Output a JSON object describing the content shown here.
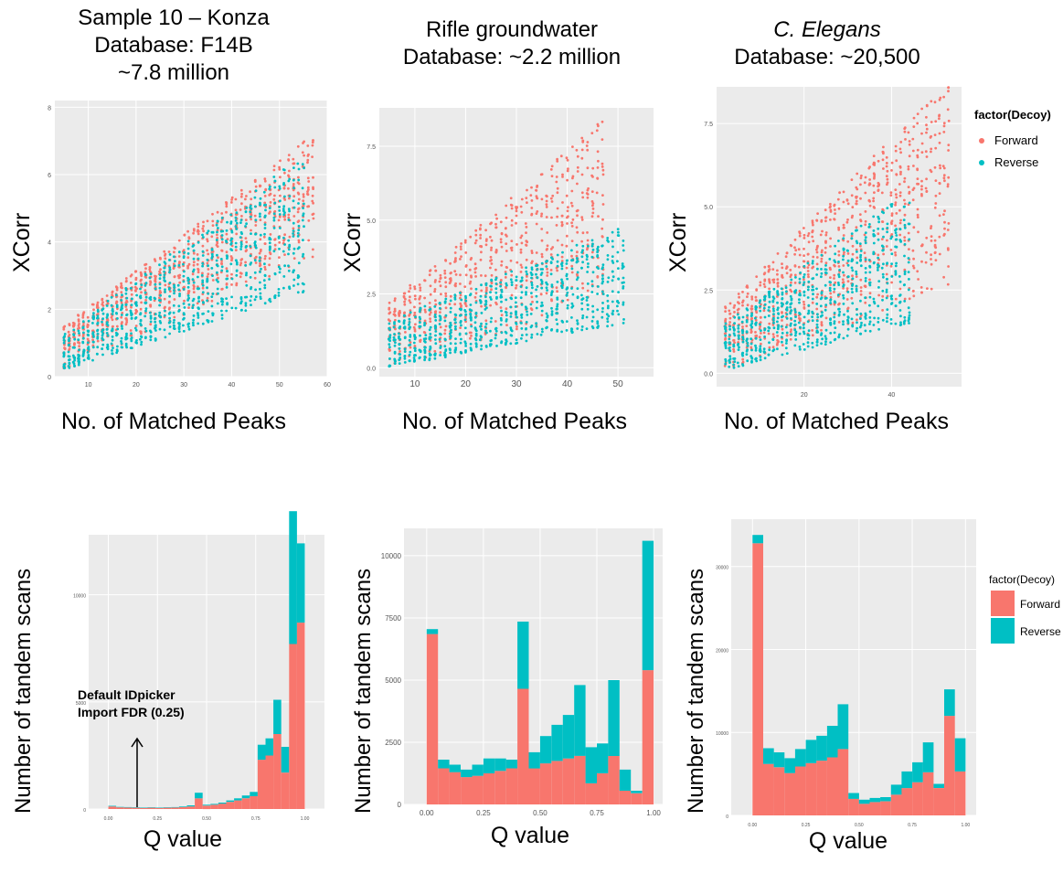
{
  "figure": {
    "legend_colors": {
      "Forward": "#F8766D",
      "Reverse": "#00BFC4"
    },
    "panel_background": "#EBEBEB",
    "grid_color": "#FFFFFF"
  },
  "chart_data": [
    {
      "type": "scatter",
      "title": [
        "Sample 10 – Konza",
        "Database: F14B",
        "~7.8 million"
      ],
      "xlabel": "No. of Matched Peaks",
      "ylabel": "XCorr",
      "xlim": [
        3,
        60
      ],
      "ylim": [
        0,
        8.2
      ],
      "xticks": [
        10,
        20,
        30,
        40,
        50,
        60
      ],
      "yticks": [
        0,
        2,
        4,
        6,
        8
      ],
      "series": [
        {
          "name": "Forward",
          "x_range": [
            5,
            57
          ],
          "y_min": [
            0.2,
            3.5
          ],
          "y_max": [
            1.5,
            7.2
          ]
        },
        {
          "name": "Reverse",
          "x_range": [
            5,
            55
          ],
          "y_min": [
            0.2,
            2.5
          ],
          "y_max": [
            1.3,
            6.6
          ]
        }
      ]
    },
    {
      "type": "scatter",
      "title": [
        "Rifle groundwater",
        "Database: ~2.2 million"
      ],
      "xlabel": "No. of Matched Peaks",
      "ylabel": "XCorr",
      "xlim": [
        3,
        57
      ],
      "ylim": [
        -0.3,
        8.8
      ],
      "xticks": [
        10,
        20,
        30,
        40,
        50
      ],
      "yticks": [
        0.0,
        2.5,
        5.0,
        7.5
      ],
      "series": [
        {
          "name": "Forward",
          "x_range": [
            5,
            47
          ],
          "y_min": [
            0.0,
            2.0
          ],
          "y_max": [
            2.2,
            8.4
          ]
        },
        {
          "name": "Reverse",
          "x_range": [
            5,
            51
          ],
          "y_min": [
            0.0,
            1.5
          ],
          "y_max": [
            1.6,
            4.8
          ]
        }
      ]
    },
    {
      "type": "scatter",
      "title": [
        "C. Elegans",
        "Database: ~20,500"
      ],
      "title_italic_line": 0,
      "xlabel": "No. of Matched Peaks",
      "ylabel": "XCorr",
      "xlim": [
        0,
        56
      ],
      "ylim": [
        -0.4,
        8.6
      ],
      "xticks": [
        20,
        40
      ],
      "yticks": [
        0.0,
        2.5,
        5.0,
        7.5
      ],
      "legend": {
        "title": "factor(Decoy)",
        "items": [
          "Forward",
          "Reverse"
        ],
        "position": "right"
      },
      "series": [
        {
          "name": "Forward",
          "x_range": [
            2,
            53
          ],
          "y_min": [
            0.1,
            2.5
          ],
          "y_max": [
            2.0,
            8.8
          ]
        },
        {
          "name": "Reverse",
          "x_range": [
            2,
            44
          ],
          "y_min": [
            0.1,
            1.5
          ],
          "y_max": [
            1.5,
            5.5
          ]
        }
      ]
    },
    {
      "type": "bar",
      "stacked": true,
      "xlabel": "Q value",
      "ylabel": "Number of tandem scans",
      "xlim": [
        -0.1,
        1.1
      ],
      "ylim": [
        0,
        12800
      ],
      "xticks": [
        "0.00",
        "0.25",
        "0.50",
        "0.75",
        "1.00"
      ],
      "yticks": [
        0,
        5000,
        10000
      ],
      "annotation": {
        "lines": [
          "Default IDpicker",
          "Import FDR (0.25)"
        ],
        "arrow_x": 0.25
      },
      "x": [
        0.0,
        0.04,
        0.08,
        0.12,
        0.16,
        0.2,
        0.24,
        0.28,
        0.32,
        0.36,
        0.4,
        0.44,
        0.48,
        0.52,
        0.56,
        0.6,
        0.64,
        0.68,
        0.72,
        0.76,
        0.8,
        0.84,
        0.88,
        0.92,
        0.96
      ],
      "series": [
        {
          "name": "Forward",
          "values": [
            120,
            80,
            70,
            60,
            50,
            60,
            50,
            60,
            70,
            90,
            120,
            500,
            160,
            200,
            250,
            330,
            400,
            500,
            600,
            2300,
            2500,
            3500,
            1700,
            7700,
            8700
          ]
        },
        {
          "name": "Reverse",
          "values": [
            30,
            20,
            20,
            20,
            20,
            20,
            20,
            20,
            20,
            30,
            50,
            260,
            40,
            40,
            50,
            70,
            100,
            130,
            200,
            700,
            800,
            1600,
            1200,
            6200,
            3700
          ]
        }
      ]
    },
    {
      "type": "bar",
      "stacked": true,
      "xlabel": "Q value",
      "ylabel": "Number of tandem scans",
      "xlim": [
        -0.1,
        1.04
      ],
      "ylim": [
        0,
        11100
      ],
      "xticks": [
        "0.00",
        "0.25",
        "0.50",
        "0.75",
        "1.00"
      ],
      "yticks": [
        0,
        2500,
        5000,
        7500,
        10000
      ],
      "x": [
        0.0,
        0.05,
        0.1,
        0.15,
        0.2,
        0.25,
        0.3,
        0.35,
        0.4,
        0.45,
        0.5,
        0.55,
        0.6,
        0.65,
        0.7,
        0.75,
        0.8,
        0.85,
        0.9,
        0.95
      ],
      "series": [
        {
          "name": "Forward",
          "values": [
            6850,
            1450,
            1300,
            1100,
            1150,
            1250,
            1350,
            1450,
            4650,
            1450,
            1650,
            1750,
            1850,
            1950,
            850,
            1250,
            1950,
            550,
            450,
            5400
          ]
        },
        {
          "name": "Reverse",
          "values": [
            200,
            350,
            300,
            300,
            450,
            600,
            500,
            350,
            2700,
            650,
            1100,
            1450,
            1750,
            2850,
            1450,
            1200,
            3050,
            850,
            100,
            5200
          ]
        }
      ]
    },
    {
      "type": "bar",
      "stacked": true,
      "xlabel": "Q value",
      "ylabel": "Number of tandem scans",
      "xlim": [
        -0.1,
        1.05
      ],
      "ylim": [
        0,
        35700
      ],
      "xticks": [
        "0.00",
        "0.25",
        "0.50",
        "0.75",
        "1.00"
      ],
      "yticks": [
        0,
        10000,
        20000,
        30000
      ],
      "x": [
        0.0,
        0.05,
        0.1,
        0.15,
        0.2,
        0.25,
        0.3,
        0.35,
        0.4,
        0.45,
        0.5,
        0.55,
        0.6,
        0.65,
        0.7,
        0.75,
        0.8,
        0.85,
        0.9,
        0.95
      ],
      "series": [
        {
          "name": "Forward",
          "values": [
            32800,
            6200,
            5800,
            5100,
            5900,
            6300,
            6600,
            7000,
            8000,
            2000,
            1400,
            1600,
            1700,
            2500,
            3300,
            4000,
            5200,
            3300,
            12000,
            5300
          ],
          "_": "",
          "_unused": ""
        },
        {
          "name": "Reverse",
          "values": [
            1000,
            1900,
            1800,
            1800,
            2100,
            2800,
            3000,
            3800,
            5400,
            700,
            500,
            500,
            500,
            1200,
            2000,
            2400,
            3600,
            500,
            3200,
            4000
          ]
        }
      ]
    }
  ]
}
